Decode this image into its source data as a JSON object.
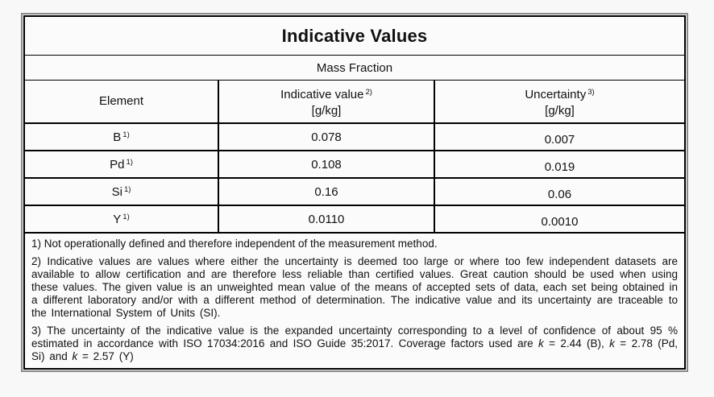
{
  "colors": {
    "page_background": "#f8f8f8",
    "cell_background": "#fbfbfb",
    "table_border": "#000000",
    "frame_shadow": "#8a8a8a",
    "text": "#111111"
  },
  "table": {
    "title": "Indicative Values",
    "subtitle": "Mass Fraction",
    "columns": [
      {
        "label": "Element",
        "sup": "",
        "unit": ""
      },
      {
        "label": "Indicative value",
        "sup": "2)",
        "unit": "[g/kg]"
      },
      {
        "label": "Uncertainty",
        "sup": "3)",
        "unit": "[g/kg]"
      }
    ],
    "rows": [
      {
        "element": "B",
        "element_sup": "1)",
        "indicative_value": "0.078",
        "uncertainty": "0.007"
      },
      {
        "element": "Pd",
        "element_sup": "1)",
        "indicative_value": "0.108",
        "uncertainty": "0.019"
      },
      {
        "element": "Si",
        "element_sup": "1)",
        "indicative_value": "0.16",
        "uncertainty": "0.06"
      },
      {
        "element": "Y",
        "element_sup": "1)",
        "indicative_value": "0.0110",
        "uncertainty": "0.0010"
      }
    ],
    "footnotes": [
      {
        "justify": false,
        "segments": [
          {
            "italic": false,
            "text": "1) Not operationally defined and therefore independent of the measurement method."
          }
        ]
      },
      {
        "justify": true,
        "segments": [
          {
            "italic": false,
            "text": "2) Indicative values are values where either the uncertainty is deemed too large or where too few independent datasets are available to allow certification and are therefore less reliable than certified values. Great caution should be used when using these values. The given value is an unweighted mean value of the means of accepted sets of data, each set being obtained in a different laboratory and/or with a different method of determination. The indicative value and its uncertainty are traceable to the International System of Units (SI)."
          }
        ]
      },
      {
        "justify": true,
        "segments": [
          {
            "italic": false,
            "text": "3) The uncertainty of the indicative value is the expanded uncertainty corresponding to a level of confidence of about 95 % estimated in accordance with ISO 17034:2016 and ISO Guide 35:2017. Coverage factors used are "
          },
          {
            "italic": true,
            "text": "k"
          },
          {
            "italic": false,
            "text": " = 2.44 (B), "
          },
          {
            "italic": true,
            "text": "k"
          },
          {
            "italic": false,
            "text": " = 2.78 (Pd, Si) and "
          },
          {
            "italic": true,
            "text": "k"
          },
          {
            "italic": false,
            "text": " = 2.57 (Y)"
          }
        ]
      }
    ]
  }
}
